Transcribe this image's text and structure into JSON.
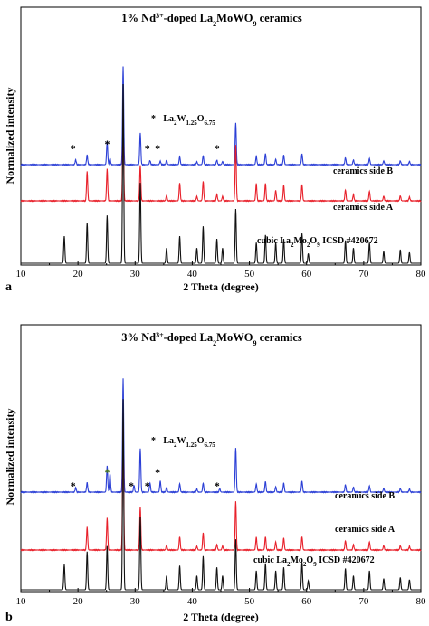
{
  "panels": [
    {
      "tag": "a",
      "title": "1% Nd3+-doped La2MoWO9 ceramics",
      "xlabel": "2 Theta (degree)",
      "ylabel": "Normalized intensity",
      "impurity_label": "* - La2W1.25O6.75",
      "curve_labels": [
        "ceramics side B",
        "ceramics side A",
        "cubic La2Mo2O9 ICSD #420672"
      ],
      "x_ticks": [
        "10",
        "20",
        "30",
        "40",
        "50",
        "60",
        "70",
        "80"
      ]
    },
    {
      "tag": "b",
      "title": "3% Nd3+-doped La2MoWO9 ceramics",
      "xlabel": "2 Theta (degree)",
      "ylabel": "Normalized intensity",
      "impurity_label": "* - La2W1.25O6.75",
      "curve_labels": [
        "ceramics side B",
        "ceramics side A",
        "cubic La2Mo2O9 ICSD #420672"
      ],
      "x_ticks": [
        "10",
        "20",
        "30",
        "40",
        "50",
        "60",
        "70",
        "80"
      ]
    }
  ],
  "chart_data": [
    {
      "type": "line",
      "title": "1% Nd3+-doped La2MoWO9 ceramics",
      "xlabel": "2 Theta (degree)",
      "ylabel": "Normalized intensity",
      "xlim": [
        10,
        80
      ],
      "series": [
        {
          "name": "ceramics side B",
          "color": "#2b3fd6",
          "peaks": [
            [
              19.6,
              0.15
            ],
            [
              21.6,
              0.3
            ],
            [
              25.1,
              0.73
            ],
            [
              25.6,
              0.2
            ],
            [
              27.9,
              3.1
            ],
            [
              30.9,
              1.0
            ],
            [
              32.6,
              0.13
            ],
            [
              34.4,
              0.11
            ],
            [
              35.5,
              0.14
            ],
            [
              37.8,
              0.25
            ],
            [
              40.8,
              0.09
            ],
            [
              41.9,
              0.28
            ],
            [
              44.3,
              0.14
            ],
            [
              45.3,
              0.1
            ],
            [
              47.6,
              1.33
            ],
            [
              51.2,
              0.26
            ],
            [
              52.8,
              0.35
            ],
            [
              54.6,
              0.17
            ],
            [
              56.0,
              0.3
            ],
            [
              59.2,
              0.34
            ],
            [
              66.8,
              0.22
            ],
            [
              68.2,
              0.15
            ],
            [
              71.0,
              0.19
            ],
            [
              73.5,
              0.12
            ],
            [
              76.4,
              0.12
            ],
            [
              78.0,
              0.1
            ]
          ]
        },
        {
          "name": "ceramics side A",
          "color": "#e8202a",
          "peaks": [
            [
              21.6,
              0.92
            ],
            [
              25.1,
              1.0
            ],
            [
              27.9,
              2.37
            ],
            [
              30.9,
              1.13
            ],
            [
              35.5,
              0.17
            ],
            [
              37.8,
              0.57
            ],
            [
              40.8,
              0.14
            ],
            [
              41.9,
              0.62
            ],
            [
              44.3,
              0.2
            ],
            [
              45.3,
              0.14
            ],
            [
              47.6,
              1.78
            ],
            [
              51.2,
              0.54
            ],
            [
              52.8,
              0.56
            ],
            [
              54.6,
              0.33
            ],
            [
              56.0,
              0.5
            ],
            [
              59.2,
              0.52
            ],
            [
              66.8,
              0.35
            ],
            [
              68.2,
              0.2
            ],
            [
              71.0,
              0.3
            ],
            [
              73.5,
              0.15
            ],
            [
              76.4,
              0.16
            ],
            [
              78.0,
              0.12
            ]
          ]
        },
        {
          "name": "cubic La2Mo2O9 ICSD #420672",
          "color": "#111111",
          "peaks": [
            [
              17.6,
              0.5
            ],
            [
              21.6,
              0.75
            ],
            [
              25.1,
              0.88
            ],
            [
              27.9,
              3.3
            ],
            [
              30.9,
              1.48
            ],
            [
              35.5,
              0.28
            ],
            [
              37.8,
              0.5
            ],
            [
              40.8,
              0.28
            ],
            [
              41.9,
              0.68
            ],
            [
              44.3,
              0.45
            ],
            [
              45.3,
              0.28
            ],
            [
              47.6,
              1.0
            ],
            [
              51.2,
              0.38
            ],
            [
              52.8,
              0.52
            ],
            [
              54.6,
              0.38
            ],
            [
              56.0,
              0.45
            ],
            [
              59.2,
              0.55
            ],
            [
              60.3,
              0.18
            ],
            [
              66.8,
              0.42
            ],
            [
              68.2,
              0.28
            ],
            [
              71.0,
              0.38
            ],
            [
              73.5,
              0.22
            ],
            [
              76.4,
              0.25
            ],
            [
              78.0,
              0.2
            ]
          ]
        }
      ],
      "impurity_peaks": [
        19.6,
        25.6,
        32.6,
        34.4,
        44.8
      ]
    },
    {
      "type": "line",
      "title": "3% Nd3+-doped La2MoWO9 ceramics",
      "xlabel": "2 Theta (degree)",
      "ylabel": "Normalized intensity",
      "xlim": [
        10,
        80
      ],
      "series": [
        {
          "name": "ceramics side B",
          "color": "#2b3fd6",
          "peaks": [
            [
              19.6,
              0.13
            ],
            [
              21.6,
              0.28
            ],
            [
              25.1,
              0.78
            ],
            [
              25.6,
              0.55
            ],
            [
              27.9,
              3.4
            ],
            [
              29.8,
              0.2
            ],
            [
              30.9,
              1.3
            ],
            [
              32.6,
              0.28
            ],
            [
              34.4,
              0.33
            ],
            [
              35.5,
              0.14
            ],
            [
              37.8,
              0.25
            ],
            [
              40.8,
              0.09
            ],
            [
              41.9,
              0.27
            ],
            [
              44.8,
              0.1
            ],
            [
              47.6,
              1.33
            ],
            [
              51.2,
              0.24
            ],
            [
              52.8,
              0.32
            ],
            [
              54.6,
              0.16
            ],
            [
              56.0,
              0.27
            ],
            [
              59.2,
              0.33
            ],
            [
              66.8,
              0.22
            ],
            [
              68.2,
              0.15
            ],
            [
              71.0,
              0.18
            ],
            [
              73.5,
              0.11
            ],
            [
              76.4,
              0.11
            ],
            [
              78.0,
              0.09
            ]
          ]
        },
        {
          "name": "ceramics side A",
          "color": "#e8202a",
          "peaks": [
            [
              21.6,
              0.68
            ],
            [
              25.1,
              0.95
            ],
            [
              27.9,
              3.7
            ],
            [
              30.9,
              1.3
            ],
            [
              35.5,
              0.14
            ],
            [
              37.8,
              0.4
            ],
            [
              40.8,
              0.11
            ],
            [
              41.9,
              0.52
            ],
            [
              44.3,
              0.16
            ],
            [
              45.3,
              0.12
            ],
            [
              47.6,
              1.47
            ],
            [
              51.2,
              0.38
            ],
            [
              52.8,
              0.4
            ],
            [
              54.6,
              0.24
            ],
            [
              56.0,
              0.36
            ],
            [
              59.2,
              0.4
            ],
            [
              66.8,
              0.28
            ],
            [
              68.2,
              0.16
            ],
            [
              71.0,
              0.24
            ],
            [
              73.5,
              0.13
            ],
            [
              76.4,
              0.13
            ],
            [
              78.0,
              0.11
            ]
          ]
        },
        {
          "name": "cubic La2Mo2O9 ICSD #420672",
          "color": "#111111",
          "peaks": [
            [
              17.6,
              0.45
            ],
            [
              21.6,
              0.68
            ],
            [
              25.1,
              0.78
            ],
            [
              27.9,
              3.4
            ],
            [
              30.9,
              1.3
            ],
            [
              35.5,
              0.25
            ],
            [
              37.8,
              0.43
            ],
            [
              40.8,
              0.25
            ],
            [
              41.9,
              0.6
            ],
            [
              44.3,
              0.4
            ],
            [
              45.3,
              0.25
            ],
            [
              47.6,
              0.9
            ],
            [
              51.2,
              0.34
            ],
            [
              52.8,
              0.47
            ],
            [
              54.6,
              0.34
            ],
            [
              56.0,
              0.4
            ],
            [
              59.2,
              0.49
            ],
            [
              60.3,
              0.16
            ],
            [
              66.8,
              0.38
            ],
            [
              68.2,
              0.25
            ],
            [
              71.0,
              0.34
            ],
            [
              73.5,
              0.2
            ],
            [
              76.4,
              0.22
            ],
            [
              78.0,
              0.18
            ]
          ]
        }
      ],
      "impurity_peaks": [
        19.6,
        25.6,
        29.8,
        32.6,
        34.4,
        44.8
      ]
    }
  ]
}
